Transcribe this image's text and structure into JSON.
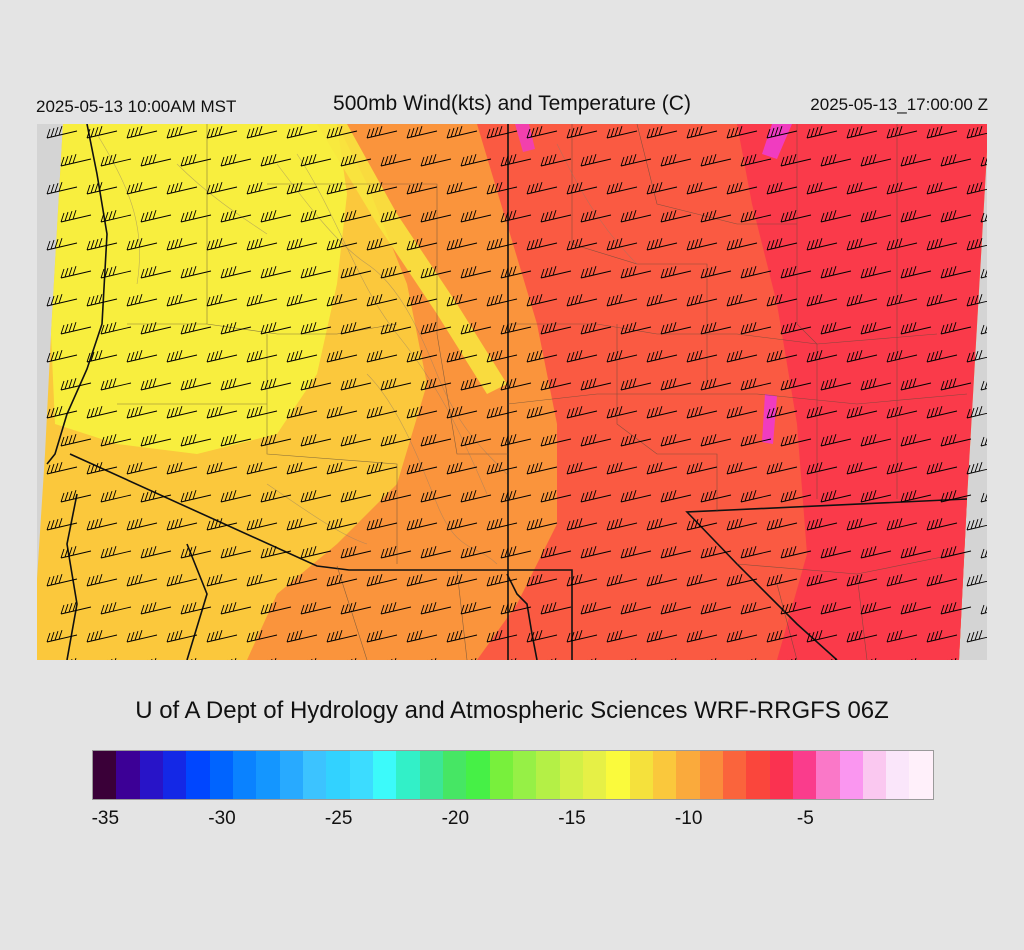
{
  "header": {
    "local_time": "2025-05-13 10:00AM MST",
    "title": "500mb Wind(kts) and Temperature (C)",
    "valid_time": "2025-05-13_17:00:00 Z"
  },
  "credit": "U of A Dept of Hydrology and Atmospheric Sciences WRF-RRGFS 06Z",
  "colorbar": {
    "colors": [
      "#3a0038",
      "#3c0096",
      "#2814c8",
      "#1428e6",
      "#0046ff",
      "#0064ff",
      "#0a82ff",
      "#1496ff",
      "#28aaff",
      "#3cc3ff",
      "#32d2ff",
      "#3cdcff",
      "#3cfafa",
      "#32f0c8",
      "#3ce696",
      "#46e664",
      "#46f046",
      "#78f03c",
      "#96f046",
      "#b4f046",
      "#d2f046",
      "#e6f046",
      "#fafa3c",
      "#f5e13c",
      "#fac83c",
      "#faaa3c",
      "#fa8c3c",
      "#fa643c",
      "#fa463c",
      "#fa3250",
      "#fa3c8c",
      "#fa78c8",
      "#fa96f0",
      "#fac8f0",
      "#fae6fa",
      "#fff0fa"
    ],
    "labels": [
      "-35",
      "-30",
      "-25",
      "-20",
      "-15",
      "-10",
      "-5"
    ]
  },
  "map": {
    "variable": "500mb temperature (C) with wind barbs (kts)",
    "color_regions": [
      {
        "name": "yellow",
        "color": "#f8f03e"
      },
      {
        "name": "light-orange",
        "color": "#fbc83c"
      },
      {
        "name": "orange",
        "color": "#fa943c"
      },
      {
        "name": "red-orange",
        "color": "#fa5a42"
      },
      {
        "name": "red",
        "color": "#fa3a4a"
      },
      {
        "name": "pink",
        "color": "#f03cc0"
      },
      {
        "name": "no-data",
        "color": "#d4d4d4"
      }
    ]
  }
}
